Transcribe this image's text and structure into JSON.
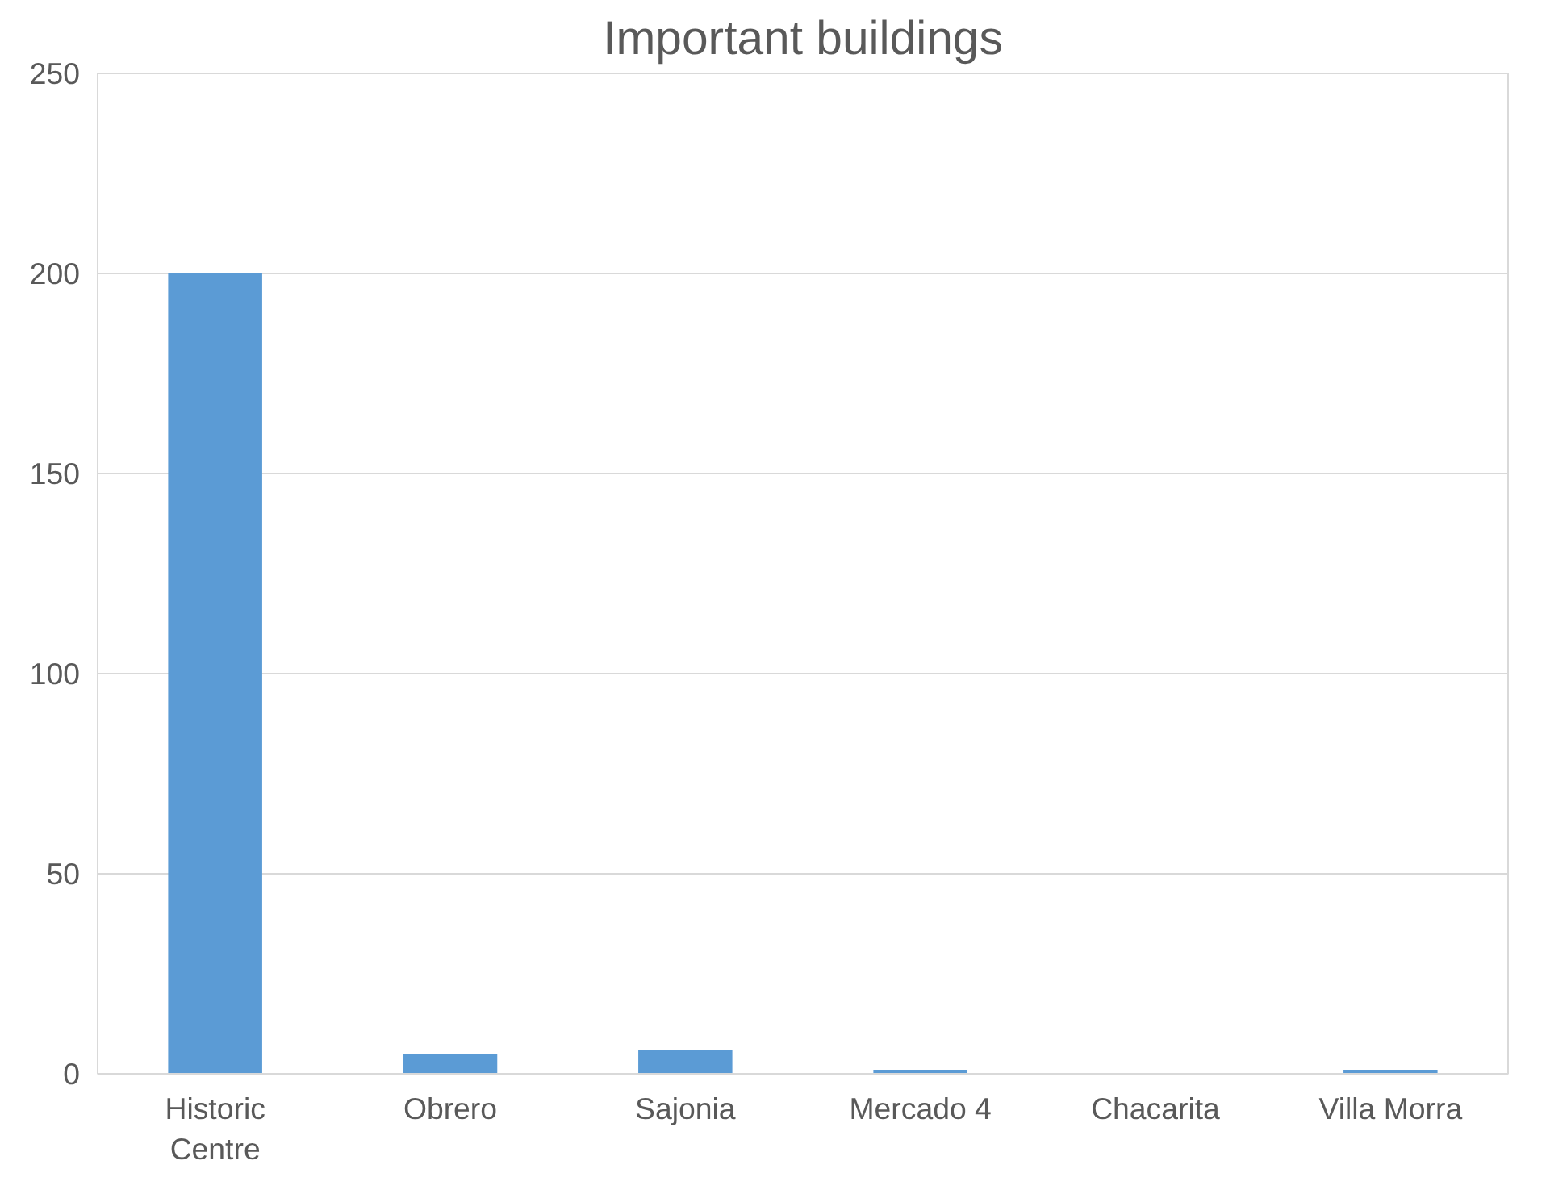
{
  "chart_data": {
    "type": "bar",
    "title": "Important buildings",
    "categories": [
      "Historic\nCentre",
      "Obrero",
      "Sajonia",
      "Mercado 4",
      "Chacarita",
      "Villa Morra"
    ],
    "values": [
      200,
      5,
      6,
      1,
      0,
      1
    ],
    "color": "#5b9bd5",
    "ylim": [
      0,
      250
    ],
    "yticks": [
      0,
      50,
      100,
      150,
      200,
      250
    ],
    "grid": "y"
  }
}
